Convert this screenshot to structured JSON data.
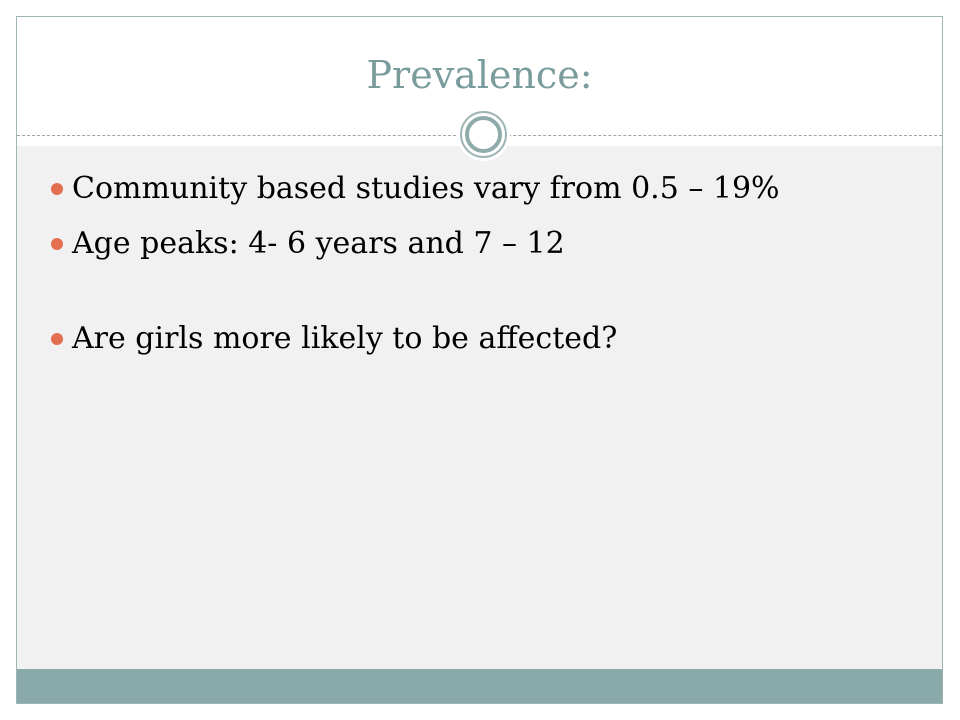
{
  "slide": {
    "title": "Prevalence:",
    "bullets": [
      "Community based studies vary from 0.5 – 19%",
      "Age peaks: 4- 6 years and 7 – 12",
      "Are girls more likely to be affected?"
    ],
    "colors": {
      "title": "#7a9c9c",
      "bullet_marker": "#e46f50",
      "body_background": "#f1f1f1",
      "footer_bar": "#8aaaaa",
      "ornament_ring": "#8fabab"
    },
    "icons": {
      "ornament": "double-ring-icon",
      "bullet": "dot-icon"
    }
  }
}
